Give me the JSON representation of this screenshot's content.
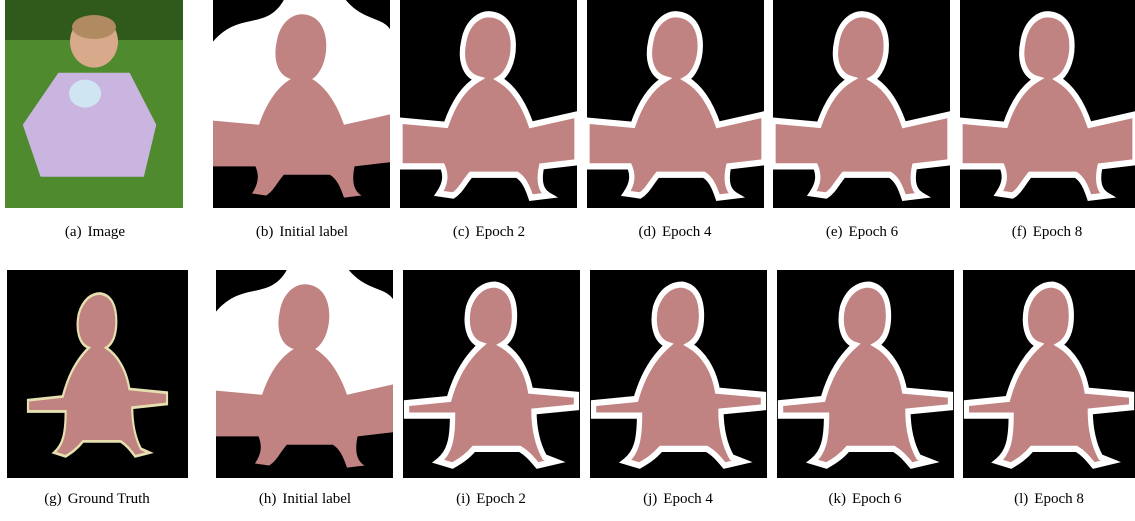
{
  "figure": {
    "panels": [
      {
        "label": "(a)",
        "caption": "Image"
      },
      {
        "label": "(b)",
        "caption": "Initial label"
      },
      {
        "label": "(c)",
        "caption": "Epoch 2"
      },
      {
        "label": "(d)",
        "caption": "Epoch 4"
      },
      {
        "label": "(e)",
        "caption": "Epoch 6"
      },
      {
        "label": "(f)",
        "caption": "Epoch 8"
      },
      {
        "label": "(g)",
        "caption": "Ground Truth"
      },
      {
        "label": "(h)",
        "caption": "Initial label"
      },
      {
        "label": "(i)",
        "caption": "Epoch 2"
      },
      {
        "label": "(j)",
        "caption": "Epoch 4"
      },
      {
        "label": "(k)",
        "caption": "Epoch 6"
      },
      {
        "label": "(l)",
        "caption": "Epoch 8"
      }
    ]
  }
}
